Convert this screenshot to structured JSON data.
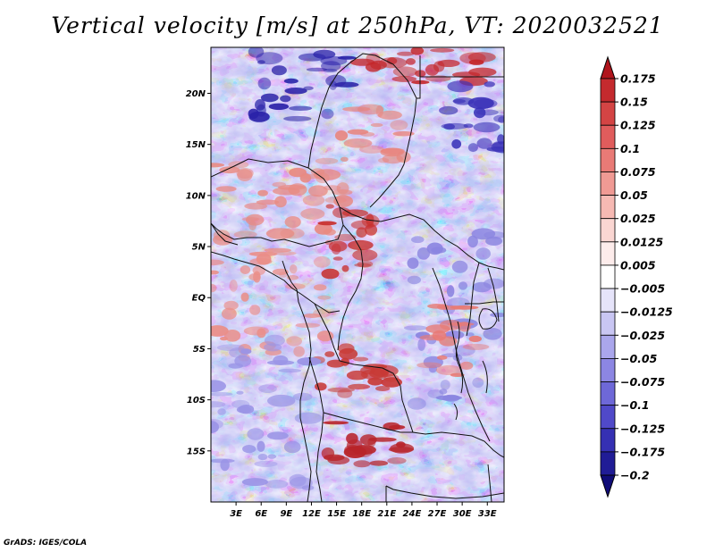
{
  "title": "Vertical velocity [m/s] at 250hPa, VT: 2020032521",
  "footer": "GrADS: IGES/COLA",
  "map": {
    "lat_labels": [
      "20N",
      "15N",
      "10N",
      "5N",
      "EQ",
      "5S",
      "10S",
      "15S"
    ],
    "lat_values": [
      20,
      15,
      10,
      5,
      0,
      -5,
      -10,
      -15
    ],
    "lon_labels": [
      "3E",
      "6E",
      "9E",
      "12E",
      "15E",
      "18E",
      "21E",
      "24E",
      "27E",
      "30E",
      "33E"
    ],
    "lon_values": [
      3,
      6,
      9,
      12,
      15,
      18,
      21,
      24,
      27,
      30,
      33
    ],
    "lon_range": [
      0,
      35
    ],
    "lat_range": [
      -20,
      24.5
    ]
  },
  "colorbar": {
    "levels": [
      "0.175",
      "0.15",
      "0.125",
      "0.1",
      "0.075",
      "0.05",
      "0.025",
      "0.0125",
      "0.005",
      "−0.005",
      "−0.0125",
      "−0.025",
      "−0.05",
      "−0.075",
      "−0.1",
      "−0.125",
      "−0.175",
      "−0.2"
    ],
    "colors": [
      "#b0141c",
      "#c42a2e",
      "#d44444",
      "#e05c5c",
      "#e97a76",
      "#f09a94",
      "#f6b9b3",
      "#fad6d2",
      "#fdeceb",
      "#ffffff",
      "#e6e4fa",
      "#c9c6f3",
      "#aaa6ec",
      "#8c86e3",
      "#6e68d8",
      "#5049c9",
      "#3530b3",
      "#201c96",
      "#100c78"
    ]
  }
}
